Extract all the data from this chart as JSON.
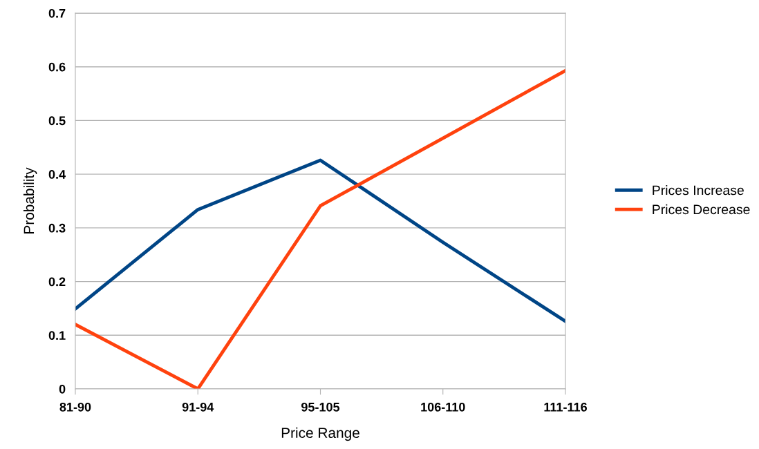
{
  "chart_data": {
    "type": "line",
    "xlabel": "Price Range",
    "ylabel": "Probability",
    "categories": [
      "81-90",
      "91-94",
      "95-105",
      "106-110",
      "111-116"
    ],
    "series": [
      {
        "name": "Prices Increase",
        "color": "#004586",
        "values": [
          0.149,
          0.334,
          0.426,
          0.273,
          0.126
        ]
      },
      {
        "name": "Prices Decrease",
        "color": "#ff420e",
        "values": [
          0.12,
          0.0,
          0.341,
          0.467,
          0.593
        ]
      }
    ],
    "ylim": [
      0,
      0.7
    ],
    "yticks": [
      0,
      0.1,
      0.2,
      0.3,
      0.4,
      0.5,
      0.6,
      0.7
    ],
    "grid": "y",
    "legend": "right",
    "marker": "none",
    "line_style": "solid"
  }
}
